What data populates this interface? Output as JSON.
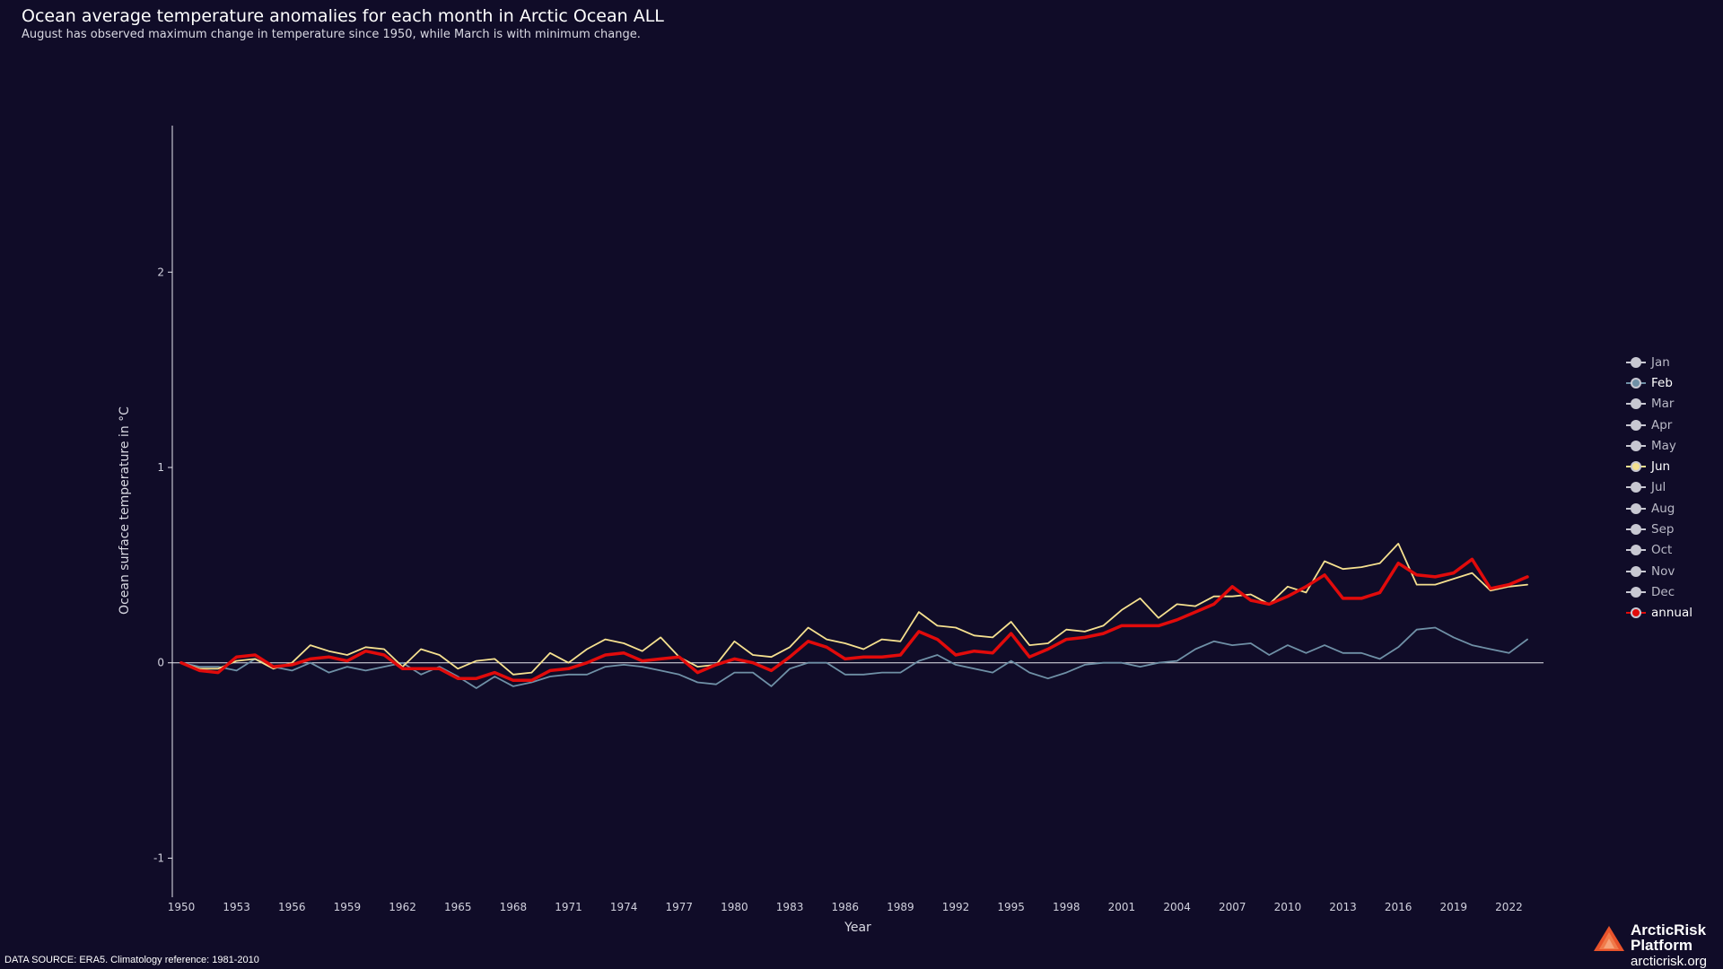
{
  "header": {
    "title": "Ocean average temperature anomalies for each month in Arctic Ocean ALL",
    "subtitle": "August has observed maximum change in temperature since 1950, while March is with minimum change."
  },
  "footer": {
    "source": "DATA SOURCE: ERA5. Climatology reference: 1981-2010",
    "brand_line1": "ArcticRisk",
    "brand_line2": "Platform",
    "brand_url": "arcticrisk.org"
  },
  "colors": {
    "background": "#100c28",
    "feb": "#6f90a6",
    "jun": "#f5e08f",
    "annual": "#e10b0b",
    "inactive_marker": "#c8c8d2",
    "axis": "#e6e6ee",
    "logo": "#e8532b"
  },
  "chart_data": {
    "type": "line",
    "title": "Ocean average temperature anomalies for each month in Arctic Ocean ALL",
    "subtitle": "August has observed maximum change in temperature since 1950, while March is with minimum change.",
    "xlabel": "Year",
    "ylabel": "Ocean surface temperature in °C",
    "xlim": [
      1950,
      2023
    ],
    "ylim": [
      -1.2,
      2.75
    ],
    "xticks": [
      1950,
      1953,
      1956,
      1959,
      1962,
      1965,
      1968,
      1971,
      1974,
      1977,
      1980,
      1983,
      1986,
      1989,
      1992,
      1995,
      1998,
      2001,
      2004,
      2007,
      2010,
      2013,
      2016,
      2019,
      2022
    ],
    "yticks": [
      -1,
      0,
      1,
      2
    ],
    "grid": false,
    "legend_position": "right",
    "x": [
      1950,
      1951,
      1952,
      1953,
      1954,
      1955,
      1956,
      1957,
      1958,
      1959,
      1960,
      1961,
      1962,
      1963,
      1964,
      1965,
      1966,
      1967,
      1968,
      1969,
      1970,
      1971,
      1972,
      1973,
      1974,
      1975,
      1976,
      1977,
      1978,
      1979,
      1980,
      1981,
      1982,
      1983,
      1984,
      1985,
      1986,
      1987,
      1988,
      1989,
      1990,
      1991,
      1992,
      1993,
      1994,
      1995,
      1996,
      1997,
      1998,
      1999,
      2000,
      2001,
      2002,
      2003,
      2004,
      2005,
      2006,
      2007,
      2008,
      2009,
      2010,
      2011,
      2012,
      2013,
      2014,
      2015,
      2016,
      2017,
      2018,
      2019,
      2020,
      2021,
      2022,
      2023
    ],
    "legend": [
      "Jan",
      "Feb",
      "Mar",
      "Apr",
      "May",
      "Jun",
      "Jul",
      "Aug",
      "Sep",
      "Oct",
      "Nov",
      "Dec",
      "annual"
    ],
    "series": [
      {
        "name": "Feb",
        "color": "#6f90a6",
        "values": [
          0.0,
          -0.02,
          -0.02,
          -0.04,
          0.02,
          -0.02,
          -0.04,
          0.0,
          -0.05,
          -0.02,
          -0.04,
          -0.02,
          0.0,
          -0.06,
          -0.02,
          -0.07,
          -0.13,
          -0.07,
          -0.12,
          -0.1,
          -0.07,
          -0.06,
          -0.06,
          -0.02,
          -0.01,
          -0.02,
          -0.04,
          -0.06,
          -0.1,
          -0.11,
          -0.05,
          -0.05,
          -0.12,
          -0.03,
          0.0,
          0.0,
          -0.06,
          -0.06,
          -0.05,
          -0.05,
          0.01,
          0.04,
          -0.01,
          -0.03,
          -0.05,
          0.01,
          -0.05,
          -0.08,
          -0.05,
          -0.01,
          0.0,
          0.0,
          -0.02,
          0.0,
          0.01,
          0.07,
          0.11,
          0.09,
          0.1,
          0.04,
          0.09,
          0.05,
          0.09,
          0.05,
          0.05,
          0.02,
          0.08,
          0.17,
          0.18,
          0.13,
          0.09,
          0.07,
          0.05,
          0.12
        ]
      },
      {
        "name": "Jun",
        "color": "#f5e08f",
        "values": [
          0.0,
          -0.03,
          -0.03,
          0.01,
          0.02,
          -0.03,
          0.0,
          0.09,
          0.06,
          0.04,
          0.08,
          0.07,
          -0.02,
          0.07,
          0.04,
          -0.03,
          0.01,
          0.02,
          -0.06,
          -0.05,
          0.05,
          0.0,
          0.07,
          0.12,
          0.1,
          0.06,
          0.13,
          0.03,
          -0.02,
          -0.01,
          0.11,
          0.04,
          0.03,
          0.08,
          0.18,
          0.12,
          0.1,
          0.07,
          0.12,
          0.11,
          0.26,
          0.19,
          0.18,
          0.14,
          0.13,
          0.21,
          0.09,
          0.1,
          0.17,
          0.16,
          0.19,
          0.27,
          0.33,
          0.23,
          0.3,
          0.29,
          0.34,
          0.34,
          0.35,
          0.3,
          0.39,
          0.36,
          0.52,
          0.48,
          0.49,
          0.51,
          0.61,
          0.4,
          0.4,
          0.43,
          0.46,
          0.37,
          0.39,
          0.4
        ]
      },
      {
        "name": "annual",
        "color": "#e10b0b",
        "values": [
          0.0,
          -0.04,
          -0.05,
          0.03,
          0.04,
          -0.02,
          -0.01,
          0.02,
          0.03,
          0.01,
          0.06,
          0.04,
          -0.03,
          -0.03,
          -0.03,
          -0.08,
          -0.08,
          -0.05,
          -0.09,
          -0.09,
          -0.04,
          -0.03,
          0.0,
          0.04,
          0.05,
          0.01,
          0.02,
          0.03,
          -0.05,
          -0.01,
          0.02,
          0.0,
          -0.04,
          0.03,
          0.11,
          0.08,
          0.02,
          0.03,
          0.03,
          0.04,
          0.16,
          0.12,
          0.04,
          0.06,
          0.05,
          0.15,
          0.03,
          0.07,
          0.12,
          0.13,
          0.15,
          0.19,
          0.19,
          0.19,
          0.22,
          0.26,
          0.3,
          0.39,
          0.32,
          0.3,
          0.34,
          0.39,
          0.45,
          0.33,
          0.33,
          0.36,
          0.51,
          0.45,
          0.44,
          0.46,
          0.53,
          0.38,
          0.4,
          0.44
        ]
      }
    ]
  }
}
